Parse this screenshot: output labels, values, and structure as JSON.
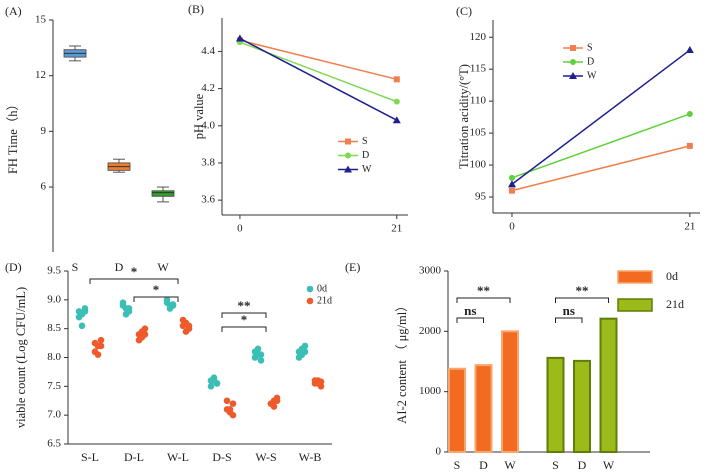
{
  "chart_data": [
    {
      "type": "box",
      "label": "(A)",
      "ylabel": "FH Time（h）",
      "categories": [
        "S",
        "D",
        "W"
      ],
      "boxes": [
        {
          "min": 12.8,
          "q1": 13.0,
          "median": 13.2,
          "q3": 13.4,
          "max": 13.6
        },
        {
          "min": 6.8,
          "q1": 6.9,
          "median": 7.1,
          "q3": 7.3,
          "max": 7.5
        },
        {
          "min": 5.2,
          "q1": 5.5,
          "median": 5.7,
          "q3": 5.8,
          "max": 6.0
        }
      ],
      "colors": [
        "#5b9bd5",
        "#ed7d31",
        "#2ca02c"
      ],
      "ylim": [
        2.5,
        15
      ],
      "yticks": [
        6,
        9,
        12,
        15
      ]
    },
    {
      "type": "line",
      "label": "(B)",
      "ylabel": "pH value",
      "x": [
        0,
        21
      ],
      "xlim": [
        -2.4,
        22.5
      ],
      "xticks": [
        0,
        21
      ],
      "ylim": [
        3.52,
        4.58
      ],
      "yticks": [
        3.6,
        3.8,
        {
          "value": 4,
          "label": "4.0"
        },
        4.2,
        4.4
      ],
      "legend": "center right",
      "series": [
        {
          "name": "S",
          "color": "#f07f4f",
          "marker": "square",
          "values": [
            4.46,
            4.25
          ]
        },
        {
          "name": "D",
          "color": "#7ed957",
          "marker": "circle",
          "values": [
            4.45,
            4.13
          ]
        },
        {
          "name": "W",
          "color": "#1f1f8f",
          "marker": "triangle",
          "values": [
            4.47,
            4.03
          ]
        }
      ]
    },
    {
      "type": "line",
      "label": "(C)",
      "ylabel": "Titration acidity/(°T)",
      "x": [
        0,
        21
      ],
      "xlim": [
        -2.24,
        22.2
      ],
      "xticks": [
        0,
        21
      ],
      "ylim": [
        92.5,
        122.7
      ],
      "yticks": [
        95,
        100,
        105,
        110,
        115,
        120
      ],
      "legend": "upper left",
      "series": [
        {
          "name": "S",
          "color": "#f07f4f",
          "marker": "square",
          "values": [
            96,
            103
          ]
        },
        {
          "name": "D",
          "color": "#5fd13a",
          "marker": "circle",
          "values": [
            98,
            108
          ]
        },
        {
          "name": "W",
          "color": "#1f1f8f",
          "marker": "triangle",
          "values": [
            97,
            118
          ]
        }
      ]
    },
    {
      "type": "strip",
      "label": "(D)",
      "ylabel": "viable count (Log CFU/mL)",
      "categories": [
        "S-L",
        "D-L",
        "W-L",
        "D-S",
        "W-S",
        "W-B"
      ],
      "ylim": [
        6.5,
        9.5
      ],
      "yticks": [
        6.5,
        {
          "value": 7,
          "label": "7.0"
        },
        7.5,
        {
          "value": 8,
          "label": "8.0"
        },
        8.5,
        {
          "value": 9,
          "label": "9.0"
        },
        9.5
      ],
      "legend": "upper right",
      "series": [
        {
          "name": "0d",
          "color": "#3bbfb4",
          "values": [
            [
              8.8,
              8.75,
              8.85,
              8.7,
              8.55,
              8.8
            ],
            [
              8.9,
              8.85,
              8.8,
              8.95,
              8.75,
              8.85
            ],
            [
              8.95,
              8.9,
              8.9,
              9.0,
              8.85,
              8.92
            ],
            [
              7.6,
              7.65,
              7.55,
              7.5,
              7.6,
              7.55
            ],
            [
              8.1,
              8.05,
              7.95,
              8.0,
              8.15,
              8.05
            ],
            [
              8.1,
              8.15,
              8.2,
              8.0,
              8.05,
              8.1
            ]
          ]
        },
        {
          "name": "21d",
          "color": "#ee5a2c",
          "values": [
            [
              8.25,
              8.2,
              8.3,
              8.1,
              8.05,
              8.2
            ],
            [
              8.4,
              8.35,
              8.5,
              8.3,
              8.45,
              8.4
            ],
            [
              8.55,
              8.6,
              8.5,
              8.65,
              8.45,
              8.55
            ],
            [
              7.1,
              7.05,
              7.2,
              7.25,
              7.1,
              7.0
            ],
            [
              7.2,
              7.25,
              7.3,
              7.2,
              7.15,
              7.25
            ],
            [
              7.55,
              7.6,
              7.5,
              7.6,
              7.55,
              7.58
            ]
          ]
        }
      ],
      "annotations": [
        {
          "from": 0,
          "to": 2,
          "label": "*"
        },
        {
          "from": 1,
          "to": 2,
          "label": "*"
        },
        {
          "from": 3,
          "to": 4,
          "label": "**"
        },
        {
          "from": 3,
          "to": 4,
          "label": "*"
        }
      ]
    },
    {
      "type": "bar",
      "label": "(E)",
      "ylabel": "AI-2 content （ μg/ml）",
      "categories": [
        "S",
        "D",
        "W",
        "S",
        "D",
        "W"
      ],
      "ylim": [
        0,
        3000
      ],
      "yticks": [
        0,
        1000,
        2000,
        3000
      ],
      "legend": "upper right",
      "series": [
        {
          "name": "0d",
          "color": "#f26b21",
          "edge": "#f9a66c",
          "values": [
            1380,
            1440,
            2000,
            null,
            null,
            null
          ]
        },
        {
          "name": "21d",
          "color": "#9cbb1a",
          "edge": "#5f7d08",
          "values": [
            null,
            null,
            null,
            1560,
            1510,
            2210
          ]
        }
      ],
      "annotations": [
        {
          "from": 0,
          "to": 2,
          "label": "**"
        },
        {
          "from": 0,
          "to": 1,
          "label": "ns"
        },
        {
          "from": 3,
          "to": 5,
          "label": "**"
        },
        {
          "from": 3,
          "to": 4,
          "label": "ns"
        }
      ]
    }
  ]
}
